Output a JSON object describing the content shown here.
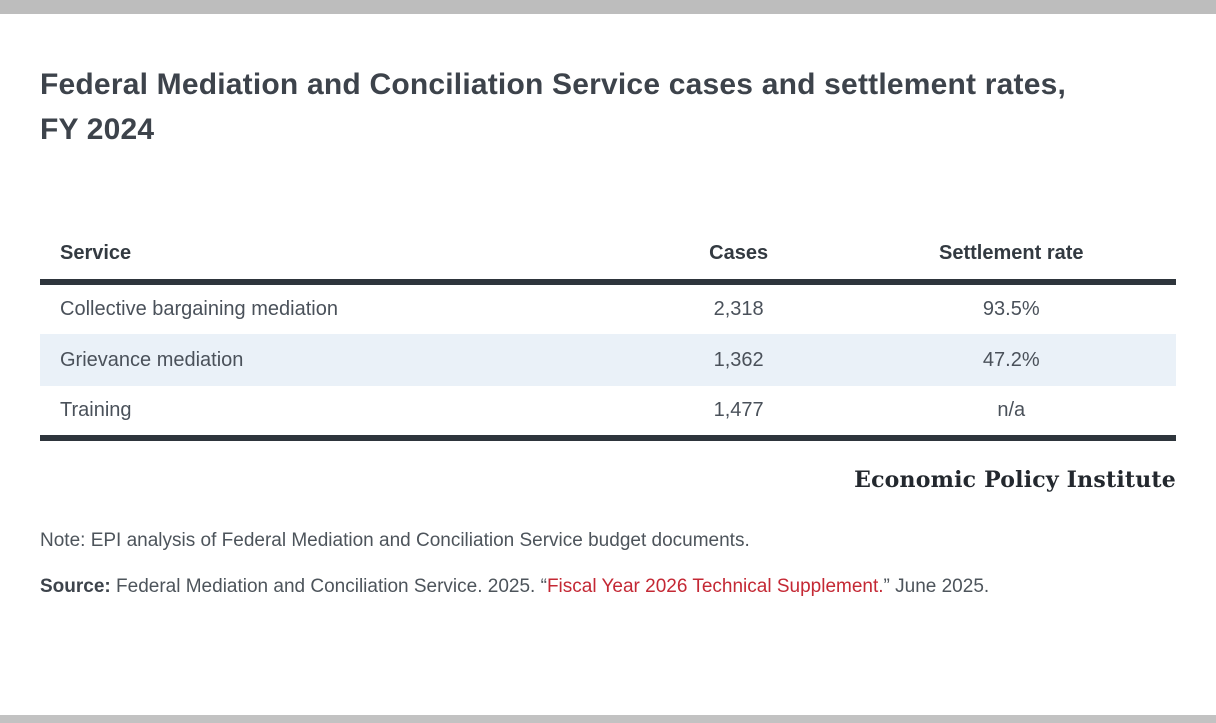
{
  "page": {
    "title": "Federal Mediation and Conciliation Service cases and settlement rates, FY 2024"
  },
  "table": {
    "columns": {
      "service": "Service",
      "cases": "Cases",
      "settlement_rate": "Settlement rate"
    },
    "rows": [
      {
        "service": "Collective bargaining mediation",
        "cases": "2,318",
        "settlement_rate": "93.5%"
      },
      {
        "service": "Grievance mediation",
        "cases": "1,362",
        "settlement_rate": "47.2%"
      },
      {
        "service": "Training",
        "cases": "1,477",
        "settlement_rate": "n/a"
      }
    ],
    "highlighted_row_index": 1
  },
  "branding": {
    "logo_text": "Economic Policy Institute"
  },
  "note": {
    "text": "Note: EPI analysis of Federal Mediation and Conciliation Service budget documents."
  },
  "source": {
    "label": "Source:",
    "text_before_link": " Federal Mediation and Conciliation Service. 2025. “",
    "link_text": "Fiscal Year 2026 Technical Supplement.",
    "text_after_link": "” June 2025."
  },
  "colors": {
    "accent_red": "#c42834",
    "row_highlight": "#eaf1f8",
    "rule_dark": "#2e353c",
    "frame_bar_gray": "#bdbdbd"
  }
}
